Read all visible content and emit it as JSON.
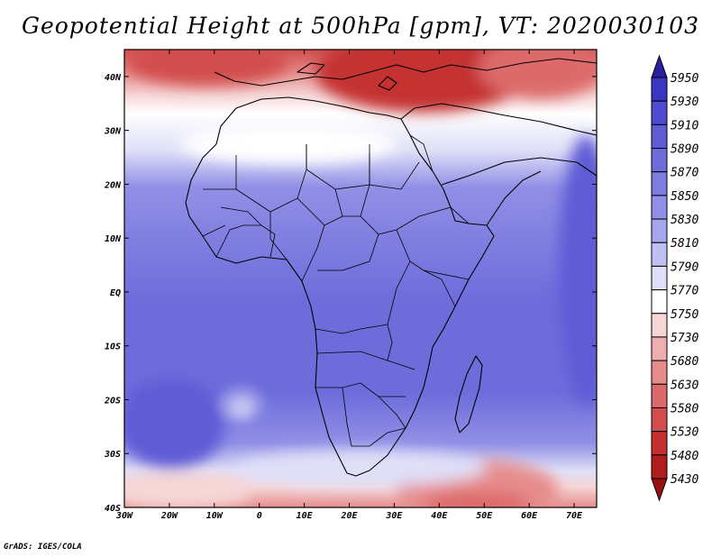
{
  "title": "Geopotential Height at 500hPa [gpm], VT: 2020030103",
  "credit": "GrADS: IGES/COLA",
  "map": {
    "lat_labels": [
      "40N",
      "30N",
      "20N",
      "10N",
      "EQ",
      "10S",
      "20S",
      "30S",
      "40S"
    ],
    "lat_values": [
      40,
      30,
      20,
      10,
      0,
      -10,
      -20,
      -30,
      -40
    ],
    "lon_labels": [
      "30W",
      "20W",
      "10W",
      "0",
      "10E",
      "20E",
      "30E",
      "40E",
      "50E",
      "60E",
      "70E"
    ],
    "lon_values": [
      -30,
      -20,
      -10,
      0,
      10,
      20,
      30,
      40,
      50,
      60,
      70
    ],
    "lon_range": [
      -30,
      75
    ],
    "lat_range": [
      -40,
      45
    ]
  },
  "colorbar": {
    "levels": [
      "5950",
      "5930",
      "5910",
      "5890",
      "5870",
      "5850",
      "5830",
      "5810",
      "5790",
      "5770",
      "5750",
      "5730",
      "5680",
      "5630",
      "5580",
      "5530",
      "5480",
      "5430"
    ],
    "colors": [
      "#2a1f9e",
      "#3a36c2",
      "#4e4bd0",
      "#5f5cd6",
      "#6e6cdb",
      "#7f7ee0",
      "#9190e6",
      "#a6a6ec",
      "#c0c0f2",
      "#dfdff8",
      "#ffffff",
      "#f6d6d6",
      "#eeaeae",
      "#e68c8c",
      "#dd6a6a",
      "#d24d4d",
      "#c43030",
      "#b01d1d",
      "#9a1010"
    ]
  }
}
